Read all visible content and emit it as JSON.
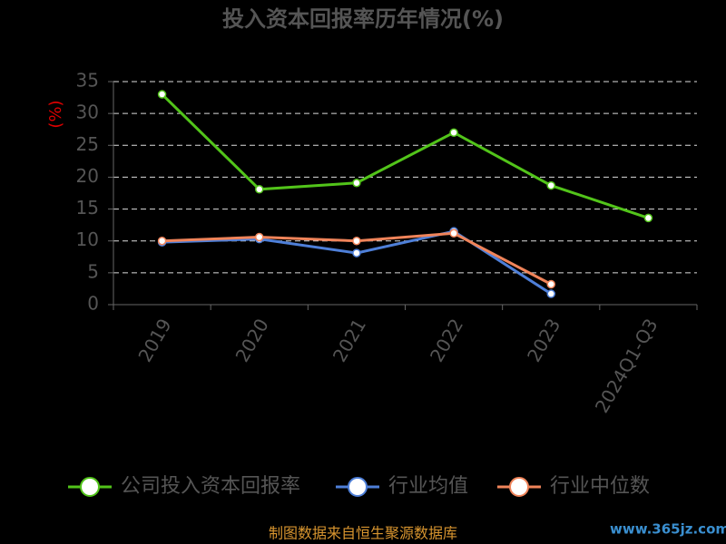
{
  "chart_data": {
    "type": "line",
    "title": "投入资本回报率历年情况(%)",
    "y_label": "(%)",
    "categories": [
      "2019",
      "2020",
      "2021",
      "2022",
      "2023",
      "2024Q1-Q3"
    ],
    "series": [
      {
        "name": "公司投入资本回报率",
        "color": "#52c41a",
        "values": [
          33,
          18.1,
          19.1,
          27,
          18.7,
          13.6
        ]
      },
      {
        "name": "行业均值",
        "color": "#4e7fd8",
        "values": [
          9.8,
          10.3,
          8.1,
          11.5,
          1.7,
          null
        ]
      },
      {
        "name": "行业中位数",
        "color": "#f0845a",
        "values": [
          10,
          10.6,
          10,
          11.2,
          3.2,
          null
        ]
      }
    ],
    "ylim": [
      0,
      35
    ],
    "yticks": [
      0,
      5,
      10,
      15,
      20,
      25,
      30,
      35
    ],
    "grid": true,
    "source": "制图数据来自恒生聚源数据库",
    "watermark": "www.365jz.com"
  }
}
